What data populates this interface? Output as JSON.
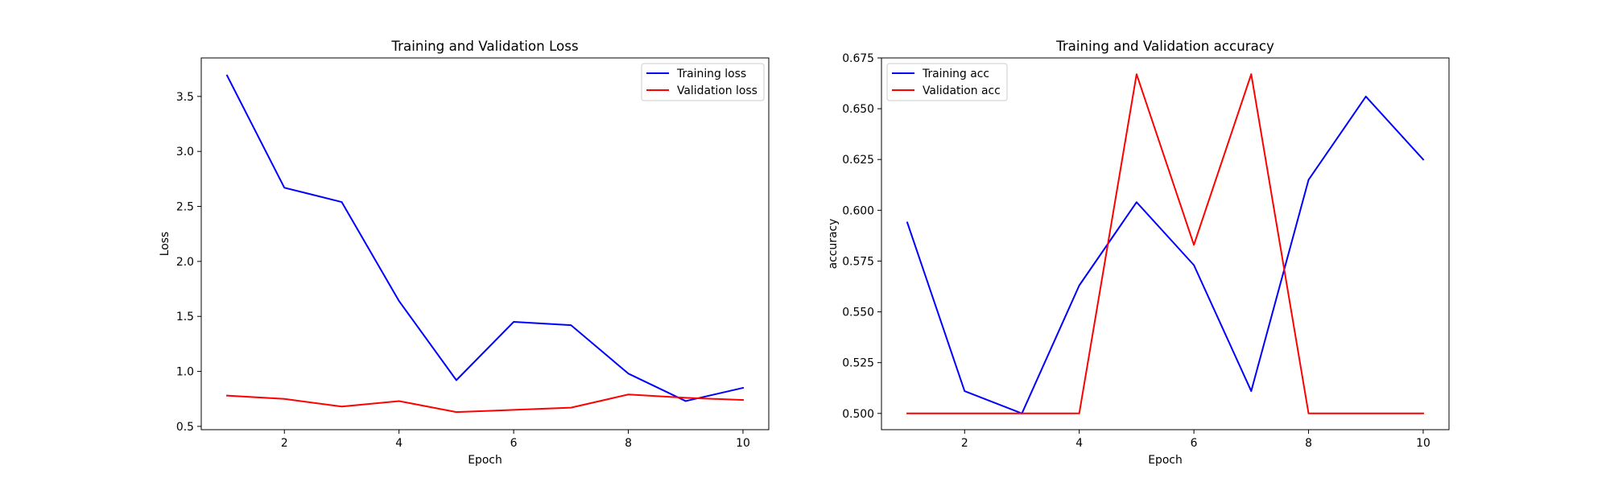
{
  "chart_data": [
    {
      "type": "line",
      "title": "Training and Validation Loss",
      "xlabel": "Epoch",
      "ylabel": "Loss",
      "xlim": [
        0.55,
        10.45
      ],
      "ylim": [
        0.47,
        3.85
      ],
      "xticks": [
        2,
        4,
        6,
        8,
        10
      ],
      "yticks": [
        0.5,
        1.0,
        1.5,
        2.0,
        2.5,
        3.0,
        3.5
      ],
      "ytick_labels": [
        "0.5",
        "1.0",
        "1.5",
        "2.0",
        "2.5",
        "3.0",
        "3.5"
      ],
      "grid": false,
      "legend_position": "upper right",
      "x": [
        1,
        2,
        3,
        4,
        5,
        6,
        7,
        8,
        9,
        10
      ],
      "series": [
        {
          "name": "Training loss",
          "color": "#0000ff",
          "values": [
            3.69,
            2.67,
            2.54,
            1.64,
            0.92,
            1.45,
            1.42,
            0.98,
            0.73,
            0.85
          ]
        },
        {
          "name": "Validation loss",
          "color": "#ff0000",
          "values": [
            0.78,
            0.75,
            0.68,
            0.73,
            0.63,
            0.65,
            0.67,
            0.79,
            0.76,
            0.74
          ]
        }
      ]
    },
    {
      "type": "line",
      "title": "Training and Validation accuracy",
      "xlabel": "Epoch",
      "ylabel": "accuracy",
      "xlim": [
        0.55,
        10.45
      ],
      "ylim": [
        0.492,
        0.675
      ],
      "xticks": [
        2,
        4,
        6,
        8,
        10
      ],
      "yticks": [
        0.5,
        0.525,
        0.55,
        0.575,
        0.6,
        0.625,
        0.65,
        0.675
      ],
      "ytick_labels": [
        "0.500",
        "0.525",
        "0.550",
        "0.575",
        "0.600",
        "0.625",
        "0.650",
        "0.675"
      ],
      "grid": false,
      "legend_position": "upper left",
      "x": [
        1,
        2,
        3,
        4,
        5,
        6,
        7,
        8,
        9,
        10
      ],
      "series": [
        {
          "name": "Training acc",
          "color": "#0000ff",
          "values": [
            0.594,
            0.511,
            0.5,
            0.563,
            0.604,
            0.573,
            0.511,
            0.615,
            0.656,
            0.625
          ]
        },
        {
          "name": "Validation acc",
          "color": "#ff0000",
          "values": [
            0.5,
            0.5,
            0.5,
            0.5,
            0.667,
            0.583,
            0.667,
            0.5,
            0.5,
            0.5
          ]
        }
      ]
    }
  ]
}
